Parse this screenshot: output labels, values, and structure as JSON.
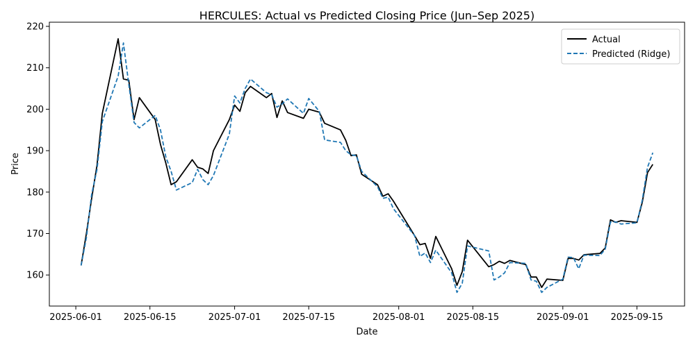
{
  "chart_data": {
    "type": "line",
    "title": "HERCULES: Actual vs Predicted Closing Price (Jun–Sep 2025)",
    "xlabel": "Date",
    "ylabel": "Price",
    "xlim": [
      "2025-05-27",
      "2025-09-24"
    ],
    "ylim": [
      152.5,
      221
    ],
    "xticks": [
      "2025-06-01",
      "2025-06-15",
      "2025-07-01",
      "2025-07-15",
      "2025-08-01",
      "2025-08-15",
      "2025-09-01",
      "2025-09-15"
    ],
    "yticks": [
      160,
      170,
      180,
      190,
      200,
      210,
      220
    ],
    "grid": false,
    "legend_position": "top-right",
    "series": [
      {
        "name": "Actual",
        "color": "#000000",
        "style": "solid",
        "points": [
          [
            "2025-06-02",
            162.3
          ],
          [
            "2025-06-03",
            170.0
          ],
          [
            "2025-06-04",
            178.5
          ],
          [
            "2025-06-05",
            186.5
          ],
          [
            "2025-06-06",
            199.0
          ],
          [
            "2025-06-09",
            217.0
          ],
          [
            "2025-06-10",
            207.3
          ],
          [
            "2025-06-11",
            207.0
          ],
          [
            "2025-06-12",
            197.5
          ],
          [
            "2025-06-13",
            202.8
          ],
          [
            "2025-06-16",
            197.5
          ],
          [
            "2025-06-17",
            191.5
          ],
          [
            "2025-06-18",
            187.0
          ],
          [
            "2025-06-19",
            181.8
          ],
          [
            "2025-06-20",
            182.5
          ],
          [
            "2025-06-23",
            187.8
          ],
          [
            "2025-06-24",
            186.0
          ],
          [
            "2025-06-25",
            185.6
          ],
          [
            "2025-06-26",
            184.5
          ],
          [
            "2025-06-27",
            190.0
          ],
          [
            "2025-06-30",
            197.5
          ],
          [
            "2025-07-01",
            201.0
          ],
          [
            "2025-07-02",
            199.5
          ],
          [
            "2025-07-03",
            204.0
          ],
          [
            "2025-07-04",
            205.5
          ],
          [
            "2025-07-07",
            202.8
          ],
          [
            "2025-07-08",
            203.8
          ],
          [
            "2025-07-09",
            198.0
          ],
          [
            "2025-07-10",
            202.0
          ],
          [
            "2025-07-11",
            199.2
          ],
          [
            "2025-07-14",
            197.8
          ],
          [
            "2025-07-15",
            200.0
          ],
          [
            "2025-07-17",
            199.3
          ],
          [
            "2025-07-18",
            196.6
          ],
          [
            "2025-07-21",
            195.0
          ],
          [
            "2025-07-22",
            192.5
          ],
          [
            "2025-07-23",
            188.8
          ],
          [
            "2025-07-24",
            189.0
          ],
          [
            "2025-07-25",
            184.3
          ],
          [
            "2025-07-28",
            181.8
          ],
          [
            "2025-07-29",
            179.0
          ],
          [
            "2025-07-30",
            179.6
          ],
          [
            "2025-07-31",
            177.8
          ],
          [
            "2025-08-04",
            169.5
          ],
          [
            "2025-08-05",
            167.3
          ],
          [
            "2025-08-06",
            167.6
          ],
          [
            "2025-08-07",
            164.0
          ],
          [
            "2025-08-08",
            169.3
          ],
          [
            "2025-08-11",
            161.5
          ],
          [
            "2025-08-12",
            157.5
          ],
          [
            "2025-08-13",
            160.8
          ],
          [
            "2025-08-14",
            168.4
          ],
          [
            "2025-08-18",
            162.0
          ],
          [
            "2025-08-19",
            162.5
          ],
          [
            "2025-08-20",
            163.3
          ],
          [
            "2025-08-21",
            162.8
          ],
          [
            "2025-08-22",
            163.5
          ],
          [
            "2025-08-25",
            162.5
          ],
          [
            "2025-08-26",
            159.5
          ],
          [
            "2025-08-27",
            159.5
          ],
          [
            "2025-08-28",
            157.0
          ],
          [
            "2025-08-29",
            159.0
          ],
          [
            "2025-09-01",
            158.7
          ],
          [
            "2025-09-02",
            164.0
          ],
          [
            "2025-09-03",
            164.0
          ],
          [
            "2025-09-04",
            163.6
          ],
          [
            "2025-09-05",
            164.9
          ],
          [
            "2025-09-08",
            165.2
          ],
          [
            "2025-09-09",
            166.5
          ],
          [
            "2025-09-10",
            173.3
          ],
          [
            "2025-09-11",
            172.7
          ],
          [
            "2025-09-12",
            173.1
          ],
          [
            "2025-09-15",
            172.7
          ],
          [
            "2025-09-16",
            177.5
          ],
          [
            "2025-09-17",
            184.7
          ],
          [
            "2025-09-18",
            186.7
          ]
        ]
      },
      {
        "name": "Predicted (Ridge)",
        "color": "#1f77b4",
        "style": "dashed",
        "points": [
          [
            "2025-06-02",
            162.3
          ],
          [
            "2025-06-03",
            169.0
          ],
          [
            "2025-06-04",
            179.5
          ],
          [
            "2025-06-05",
            185.5
          ],
          [
            "2025-06-06",
            197.0
          ],
          [
            "2025-06-09",
            208.0
          ],
          [
            "2025-06-10",
            216.0
          ],
          [
            "2025-06-11",
            206.0
          ],
          [
            "2025-06-12",
            196.8
          ],
          [
            "2025-06-13",
            195.5
          ],
          [
            "2025-06-16",
            198.5
          ],
          [
            "2025-06-17",
            195.0
          ],
          [
            "2025-06-18",
            188.5
          ],
          [
            "2025-06-19",
            185.0
          ],
          [
            "2025-06-20",
            180.5
          ],
          [
            "2025-06-23",
            182.3
          ],
          [
            "2025-06-24",
            185.5
          ],
          [
            "2025-06-25",
            183.0
          ],
          [
            "2025-06-26",
            181.8
          ],
          [
            "2025-06-27",
            184.0
          ],
          [
            "2025-06-30",
            194.0
          ],
          [
            "2025-07-01",
            203.2
          ],
          [
            "2025-07-02",
            201.5
          ],
          [
            "2025-07-03",
            205.0
          ],
          [
            "2025-07-04",
            207.3
          ],
          [
            "2025-07-07",
            204.0
          ],
          [
            "2025-07-08",
            203.5
          ],
          [
            "2025-07-09",
            200.5
          ],
          [
            "2025-07-10",
            201.3
          ],
          [
            "2025-07-11",
            202.5
          ],
          [
            "2025-07-14",
            199.0
          ],
          [
            "2025-07-15",
            202.6
          ],
          [
            "2025-07-17",
            199.5
          ],
          [
            "2025-07-18",
            192.6
          ],
          [
            "2025-07-21",
            192.0
          ],
          [
            "2025-07-22",
            190.0
          ],
          [
            "2025-07-23",
            189.0
          ],
          [
            "2025-07-24",
            188.8
          ],
          [
            "2025-07-25",
            185.0
          ],
          [
            "2025-07-28",
            181.3
          ],
          [
            "2025-07-29",
            178.5
          ],
          [
            "2025-07-30",
            178.8
          ],
          [
            "2025-07-31",
            176.0
          ],
          [
            "2025-08-04",
            169.5
          ],
          [
            "2025-08-05",
            164.5
          ],
          [
            "2025-08-06",
            165.3
          ],
          [
            "2025-08-07",
            163.0
          ],
          [
            "2025-08-08",
            166.0
          ],
          [
            "2025-08-11",
            160.5
          ],
          [
            "2025-08-12",
            155.8
          ],
          [
            "2025-08-13",
            158.0
          ],
          [
            "2025-08-14",
            167.0
          ],
          [
            "2025-08-18",
            165.8
          ],
          [
            "2025-08-19",
            158.8
          ],
          [
            "2025-08-20",
            159.5
          ],
          [
            "2025-08-21",
            160.5
          ],
          [
            "2025-08-22",
            163.0
          ],
          [
            "2025-08-25",
            162.8
          ],
          [
            "2025-08-26",
            158.8
          ],
          [
            "2025-08-27",
            158.5
          ],
          [
            "2025-08-28",
            155.8
          ],
          [
            "2025-08-29",
            157.0
          ],
          [
            "2025-09-01",
            159.0
          ],
          [
            "2025-09-02",
            164.3
          ],
          [
            "2025-09-03",
            164.2
          ],
          [
            "2025-09-04",
            161.5
          ],
          [
            "2025-09-05",
            164.8
          ],
          [
            "2025-09-08",
            164.7
          ],
          [
            "2025-09-09",
            166.2
          ],
          [
            "2025-09-10",
            172.8
          ],
          [
            "2025-09-11",
            172.8
          ],
          [
            "2025-09-12",
            172.3
          ],
          [
            "2025-09-15",
            172.6
          ],
          [
            "2025-09-16",
            178.0
          ],
          [
            "2025-09-17",
            186.0
          ],
          [
            "2025-09-18",
            189.5
          ]
        ]
      }
    ]
  }
}
